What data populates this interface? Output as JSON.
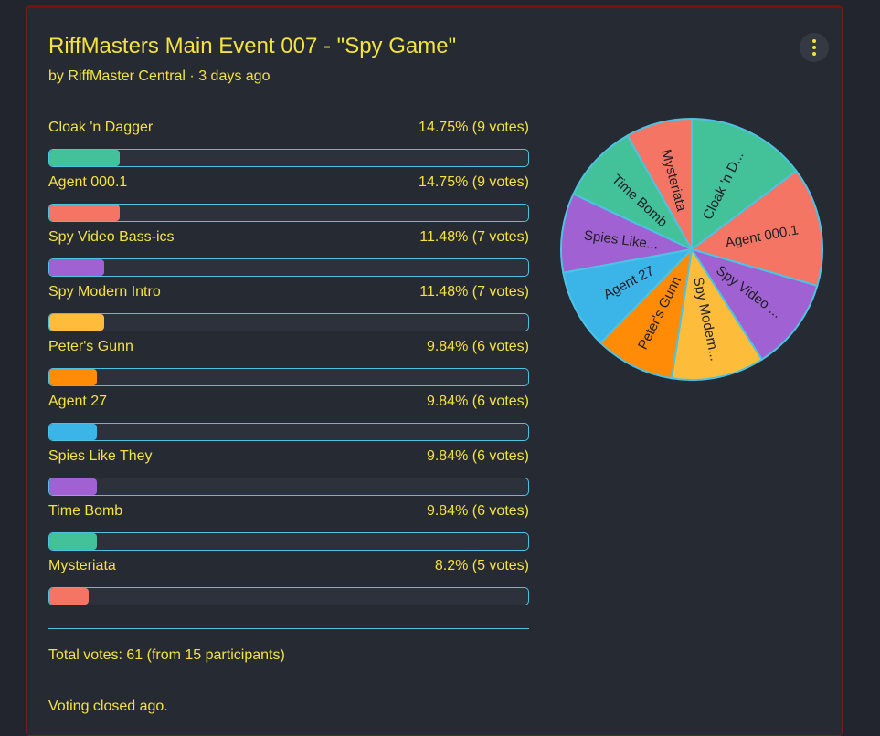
{
  "poll": {
    "title": "RiffMasters Main Event 007 - \"Spy Game\"",
    "byline": "by RiffMaster Central · 3 days ago",
    "total_votes": "Total votes: 61 (from 15 participants)",
    "status": "Voting closed ago.",
    "menu_icon": "more-vertical-icon"
  },
  "colors": {
    "text": "#f4e23e",
    "bar_border": "#4dc3e4",
    "pie_stroke": "#4dc3e4",
    "card_border": "#7a0f14"
  },
  "options": [
    {
      "label": "Cloak 'n Dagger",
      "value_text": "14.75% (9 votes)",
      "percent": 14.75,
      "votes": 9,
      "color": "#43c199",
      "pie_label": "Cloak 'n D..."
    },
    {
      "label": "Agent 000.1",
      "value_text": "14.75% (9 votes)",
      "percent": 14.75,
      "votes": 9,
      "color": "#f57565",
      "pie_label": "Agent 000.1"
    },
    {
      "label": "Spy Video Bass-ics",
      "value_text": "11.48% (7 votes)",
      "percent": 11.48,
      "votes": 7,
      "color": "#a062d3",
      "pie_label": "Spy Video ..."
    },
    {
      "label": "Spy Modern Intro",
      "value_text": "11.48% (7 votes)",
      "percent": 11.48,
      "votes": 7,
      "color": "#fdbd3a",
      "pie_label": "Spy Modern..."
    },
    {
      "label": "Peter's Gunn",
      "value_text": "9.84% (6 votes)",
      "percent": 9.84,
      "votes": 6,
      "color": "#ff8b06",
      "pie_label": "Peter's Gunn"
    },
    {
      "label": "Agent 27",
      "value_text": "9.84% (6 votes)",
      "percent": 9.84,
      "votes": 6,
      "color": "#3bb5e8",
      "pie_label": "Agent 27"
    },
    {
      "label": "Spies Like They",
      "value_text": "9.84% (6 votes)",
      "percent": 9.84,
      "votes": 6,
      "color": "#a062d3",
      "pie_label": "Spies Like..."
    },
    {
      "label": "Time Bomb",
      "value_text": "9.84% (6 votes)",
      "percent": 9.84,
      "votes": 6,
      "color": "#43c199",
      "pie_label": "Time Bomb"
    },
    {
      "label": "Mysteriata",
      "value_text": "8.2% (5 votes)",
      "percent": 8.2,
      "votes": 5,
      "color": "#f57565",
      "pie_label": "Mysteriata"
    }
  ],
  "chart_data": {
    "type": "pie",
    "categories": [
      "Cloak 'n Dagger",
      "Agent 000.1",
      "Spy Video Bass-ics",
      "Spy Modern Intro",
      "Peter's Gunn",
      "Agent 27",
      "Spies Like They",
      "Time Bomb",
      "Mysteriata"
    ],
    "values": [
      9,
      9,
      7,
      7,
      6,
      6,
      6,
      6,
      5
    ],
    "slice_labels": [
      "Cloak 'n D...",
      "Agent 000.1",
      "Spy Video ...",
      "Spy Modern...",
      "Peter's Gunn",
      "Agent 27",
      "Spies Like...",
      "Time Bomb",
      "Mysteriata"
    ],
    "colors": [
      "#43c199",
      "#f57565",
      "#a062d3",
      "#fdbd3a",
      "#ff8b06",
      "#3bb5e8",
      "#a062d3",
      "#43c199",
      "#f57565"
    ],
    "title": "",
    "start": "top",
    "direction": "clockwise"
  }
}
